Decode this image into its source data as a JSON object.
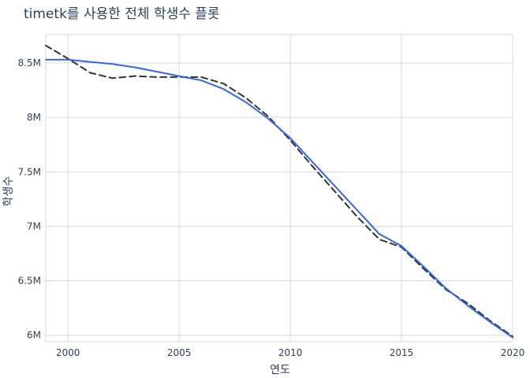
{
  "chart_data": {
    "type": "line",
    "title": "timetk를 사용한 전체 학생수 플롯",
    "xlabel": "연도",
    "ylabel": "학생수",
    "xlim": [
      1999,
      2020
    ],
    "ylim": [
      5.94,
      8.76
    ],
    "xticks": [
      2000,
      2005,
      2010,
      2015,
      2020
    ],
    "yticks": [
      6,
      6.5,
      7,
      7.5,
      8,
      8.5
    ],
    "ytick_labels": [
      "6M",
      "6.5M",
      "7M",
      "7.5M",
      "8M",
      "8.5M"
    ],
    "y_unit": "millions",
    "grid": true,
    "series": [
      {
        "color": "#333333",
        "dash": "dashed",
        "x": [
          1999,
          2000,
          2001,
          2002,
          2003,
          2004,
          2005,
          2006,
          2007,
          2008,
          2009,
          2010,
          2011,
          2012,
          2013,
          2014,
          2015,
          2016,
          2017,
          2018,
          2019,
          2020
        ],
        "values": [
          8.66,
          8.54,
          8.41,
          8.36,
          8.38,
          8.37,
          8.37,
          8.37,
          8.31,
          8.18,
          8.01,
          7.79,
          7.55,
          7.32,
          7.09,
          6.88,
          6.81,
          6.61,
          6.42,
          6.29,
          6.13,
          5.99
        ]
      },
      {
        "color": "#3366e6",
        "dash": "solid",
        "x": [
          1999,
          2000,
          2001,
          2002,
          2003,
          2004,
          2005,
          2006,
          2007,
          2008,
          2009,
          2010,
          2011,
          2012,
          2013,
          2014,
          2015,
          2016,
          2017,
          2018,
          2019,
          2020
        ],
        "values": [
          8.53,
          8.53,
          8.51,
          8.49,
          8.46,
          8.42,
          8.38,
          8.34,
          8.26,
          8.14,
          7.99,
          7.81,
          7.59,
          7.37,
          7.15,
          6.93,
          6.82,
          6.63,
          6.43,
          6.27,
          6.12,
          5.98
        ]
      }
    ]
  }
}
